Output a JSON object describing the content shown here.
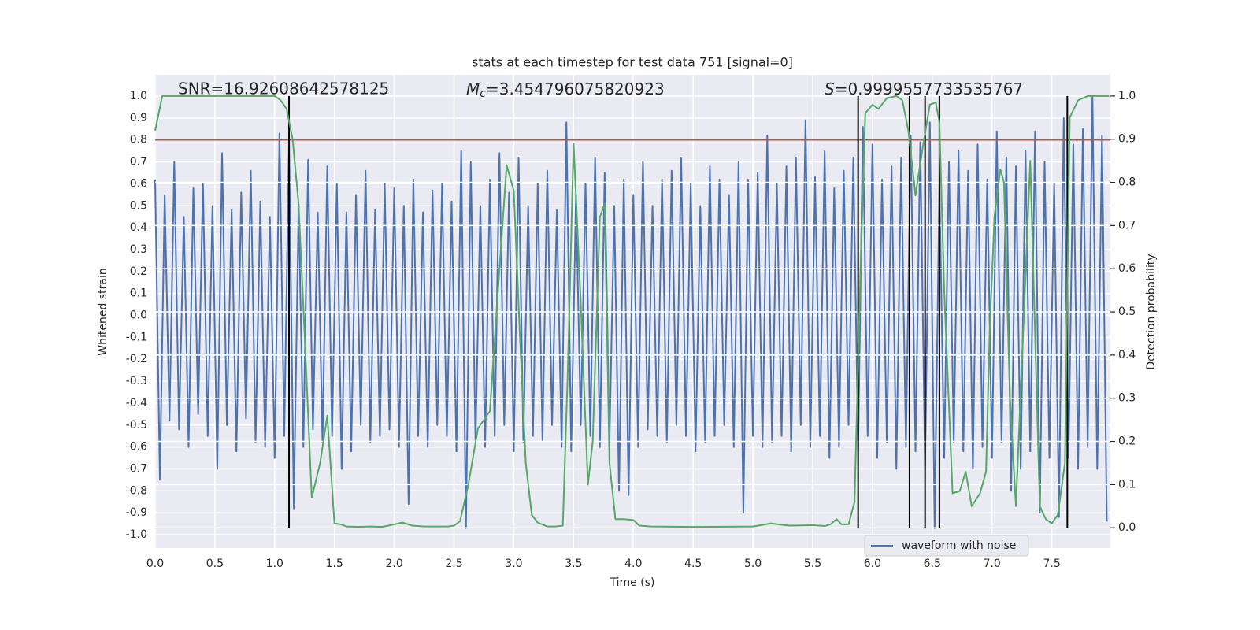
{
  "chart_data": {
    "type": "line",
    "title": "stats at each timestep for test data 751 [signal=0]",
    "xlabel": "Time (s)",
    "ylabel": "Whitened strain",
    "y2label": "Detection probability",
    "grid": true,
    "legend": "lower right",
    "annotations": [
      {
        "text": "SNR=16.92608642578125"
      },
      {
        "symbol": "M",
        "subscript": "c",
        "text": "=3.454796075820923"
      },
      {
        "symbol": "S",
        "text": "=0.9999557733535767"
      }
    ],
    "xlim": [
      0,
      7.99
    ],
    "ylim": [
      -1.061,
      1.097
    ],
    "y2lim": [
      -0.047,
      1.049
    ],
    "xticks": [
      {
        "value": 0,
        "label": "0.0"
      },
      {
        "value": 0.5,
        "label": "0.5"
      },
      {
        "value": 1,
        "label": "1.0"
      },
      {
        "value": 1.5,
        "label": "1.5"
      },
      {
        "value": 2,
        "label": "2.0"
      },
      {
        "value": 2.5,
        "label": "2.5"
      },
      {
        "value": 3,
        "label": "3.0"
      },
      {
        "value": 3.5,
        "label": "3.5"
      },
      {
        "value": 4,
        "label": "4.0"
      },
      {
        "value": 4.5,
        "label": "4.5"
      },
      {
        "value": 5,
        "label": "5.0"
      },
      {
        "value": 5.5,
        "label": "5.5"
      },
      {
        "value": 6,
        "label": "6.0"
      },
      {
        "value": 6.5,
        "label": "6.5"
      },
      {
        "value": 7,
        "label": "7.0"
      },
      {
        "value": 7.5,
        "label": "7.5"
      }
    ],
    "yticks": [
      {
        "value": -1,
        "label": "-1.0"
      },
      {
        "value": -0.9,
        "label": "-0.9"
      },
      {
        "value": -0.8,
        "label": "-0.8"
      },
      {
        "value": -0.7,
        "label": "-0.7"
      },
      {
        "value": -0.6,
        "label": "-0.6"
      },
      {
        "value": -0.5,
        "label": "-0.5"
      },
      {
        "value": -0.4,
        "label": "-0.4"
      },
      {
        "value": -0.3,
        "label": "-0.3"
      },
      {
        "value": -0.2,
        "label": "-0.2"
      },
      {
        "value": -0.1,
        "label": "-0.1"
      },
      {
        "value": 0,
        "label": "0.0"
      },
      {
        "value": 0.1,
        "label": "0.1"
      },
      {
        "value": 0.2,
        "label": "0.2"
      },
      {
        "value": 0.3,
        "label": "0.3"
      },
      {
        "value": 0.4,
        "label": "0.4"
      },
      {
        "value": 0.5,
        "label": "0.5"
      },
      {
        "value": 0.6,
        "label": "0.6"
      },
      {
        "value": 0.7,
        "label": "0.7"
      },
      {
        "value": 0.8,
        "label": "0.8"
      },
      {
        "value": 0.9,
        "label": "0.9"
      },
      {
        "value": 1,
        "label": "1.0"
      }
    ],
    "y2ticks": [
      {
        "value": 0,
        "label": "0.0"
      },
      {
        "value": 0.1,
        "label": "0.1"
      },
      {
        "value": 0.2,
        "label": "0.2"
      },
      {
        "value": 0.3,
        "label": "0.3"
      },
      {
        "value": 0.4,
        "label": "0.4"
      },
      {
        "value": 0.5,
        "label": "0.5"
      },
      {
        "value": 0.6,
        "label": "0.6"
      },
      {
        "value": 0.7,
        "label": "0.7"
      },
      {
        "value": 0.8,
        "label": "0.8"
      },
      {
        "value": 0.9,
        "label": "0.9"
      },
      {
        "value": 1,
        "label": "1.0"
      }
    ],
    "series": [
      {
        "name": "waveform with noise",
        "color": "#4c72b0",
        "x": [
          0,
          0.04,
          0.08,
          0.12,
          0.16,
          0.2,
          0.24,
          0.28,
          0.32,
          0.36,
          0.4,
          0.44,
          0.48,
          0.52,
          0.56,
          0.6,
          0.64,
          0.68,
          0.72,
          0.76,
          0.8,
          0.84,
          0.88,
          0.92,
          0.96,
          1,
          1.04,
          1.08,
          1.12,
          1.16,
          1.2,
          1.24,
          1.28,
          1.32,
          1.36,
          1.4,
          1.44,
          1.48,
          1.52,
          1.56,
          1.6,
          1.64,
          1.68,
          1.72,
          1.76,
          1.8,
          1.84,
          1.88,
          1.92,
          1.96,
          2,
          2.04,
          2.08,
          2.12,
          2.16,
          2.2,
          2.24,
          2.28,
          2.32,
          2.36,
          2.4,
          2.44,
          2.48,
          2.52,
          2.56,
          2.6,
          2.64,
          2.68,
          2.72,
          2.76,
          2.8,
          2.84,
          2.88,
          2.92,
          2.96,
          3,
          3.04,
          3.08,
          3.12,
          3.16,
          3.2,
          3.24,
          3.28,
          3.32,
          3.36,
          3.4,
          3.44,
          3.48,
          3.52,
          3.56,
          3.6,
          3.64,
          3.68,
          3.72,
          3.76,
          3.8,
          3.84,
          3.88,
          3.92,
          3.96,
          4,
          4.04,
          4.08,
          4.12,
          4.16,
          4.2,
          4.24,
          4.28,
          4.32,
          4.36,
          4.4,
          4.44,
          4.48,
          4.52,
          4.56,
          4.6,
          4.64,
          4.68,
          4.72,
          4.76,
          4.8,
          4.84,
          4.88,
          4.92,
          4.96,
          5,
          5.04,
          5.08,
          5.12,
          5.16,
          5.2,
          5.24,
          5.28,
          5.32,
          5.36,
          5.4,
          5.44,
          5.48,
          5.52,
          5.56,
          5.6,
          5.64,
          5.68,
          5.72,
          5.76,
          5.8,
          5.84,
          5.88,
          5.92,
          5.96,
          6,
          6.04,
          6.08,
          6.12,
          6.16,
          6.2,
          6.24,
          6.28,
          6.32,
          6.36,
          6.4,
          6.44,
          6.48,
          6.52,
          6.56,
          6.6,
          6.64,
          6.68,
          6.72,
          6.76,
          6.8,
          6.84,
          6.88,
          6.92,
          6.96,
          7,
          7.04,
          7.08,
          7.12,
          7.16,
          7.2,
          7.24,
          7.28,
          7.32,
          7.36,
          7.4,
          7.44,
          7.48,
          7.52,
          7.56,
          7.6,
          7.64,
          7.68,
          7.72,
          7.76,
          7.8,
          7.84,
          7.88,
          7.92,
          7.96
        ],
        "values": [
          0.62,
          -0.75,
          0.55,
          -0.48,
          0.7,
          -0.52,
          0.45,
          -0.6,
          0.58,
          -0.45,
          0.6,
          -0.55,
          0.5,
          -0.7,
          0.74,
          -0.5,
          0.48,
          -0.62,
          0.56,
          -0.47,
          0.66,
          -0.58,
          0.52,
          -0.6,
          0.45,
          -0.65,
          0.83,
          -0.55,
          0.8,
          -0.88,
          0.5,
          -0.6,
          0.71,
          -0.52,
          0.47,
          -0.58,
          0.68,
          -0.55,
          0.6,
          -0.7,
          0.47,
          -0.62,
          0.55,
          -0.5,
          0.66,
          -0.58,
          0.48,
          -0.55,
          0.6,
          -0.52,
          0.58,
          -0.6,
          0.5,
          -0.86,
          0.62,
          -0.55,
          0.47,
          -0.6,
          0.57,
          -0.5,
          0.6,
          -0.55,
          0.52,
          -0.62,
          0.75,
          -0.97,
          0.7,
          -0.58,
          0.5,
          -0.6,
          0.62,
          -0.55,
          0.74,
          -0.5,
          0.56,
          -0.62,
          0.72,
          -0.58,
          0.5,
          -0.55,
          0.6,
          -0.57,
          0.66,
          -0.5,
          0.48,
          -0.6,
          0.88,
          -0.62,
          0.55,
          -0.5,
          0.6,
          -0.55,
          0.72,
          -0.6,
          0.65,
          -0.58,
          0.5,
          -0.8,
          0.62,
          -0.82,
          0.55,
          -0.6,
          0.7,
          -0.52,
          0.5,
          -0.55,
          0.62,
          -0.58,
          0.66,
          -0.5,
          0.72,
          -0.55,
          0.6,
          -0.62,
          0.5,
          -0.58,
          0.68,
          -0.55,
          0.62,
          -0.5,
          0.55,
          -0.6,
          0.7,
          -0.9,
          0.62,
          -0.55,
          0.65,
          -0.6,
          0.82,
          -0.58,
          0.6,
          -0.55,
          0.68,
          -0.62,
          0.72,
          -0.5,
          0.89,
          -0.6,
          0.63,
          -0.55,
          0.75,
          -0.65,
          0.58,
          -0.6,
          0.66,
          -0.5,
          0.72,
          -0.62,
          0.86,
          -0.55,
          0.78,
          -0.65,
          0.62,
          -0.58,
          0.68,
          -0.7,
          0.72,
          -0.6,
          0.82,
          -0.62,
          0.79,
          -0.7,
          0.88,
          -0.97,
          0.6,
          -0.65,
          0.7,
          -0.58,
          0.75,
          -0.62,
          0.66,
          -0.7,
          0.78,
          -0.6,
          0.62,
          -0.65,
          0.84,
          -0.58,
          0.72,
          -0.8,
          0.68,
          -0.7,
          0.75,
          -0.62,
          0.84,
          -0.9,
          0.7,
          -0.65,
          0.6,
          -0.92,
          0.9,
          -0.65,
          0.78,
          -0.7,
          0.85,
          -0.6,
          1.0,
          -0.7,
          0.82,
          -0.94
        ]
      }
    ],
    "probability": {
      "color": "#55a868",
      "axis": "y2",
      "x": [
        0,
        0.06,
        0.5,
        1,
        1.05,
        1.1,
        1.15,
        1.2,
        1.25,
        1.31,
        1.38,
        1.44,
        1.5,
        1.55,
        1.6,
        1.7,
        1.8,
        1.9,
        2,
        2.07,
        2.15,
        2.25,
        2.35,
        2.45,
        2.5,
        2.55,
        2.62,
        2.7,
        2.8,
        2.88,
        2.94,
        3,
        3.05,
        3.1,
        3.15,
        3.2,
        3.28,
        3.35,
        3.41,
        3.45,
        3.5,
        3.56,
        3.62,
        3.66,
        3.72,
        3.76,
        3.8,
        3.85,
        3.92,
        4,
        4.05,
        4.15,
        4.5,
        5,
        5.15,
        5.3,
        5.5,
        5.6,
        5.65,
        5.7,
        5.74,
        5.8,
        5.85,
        5.9,
        5.94,
        6,
        6.05,
        6.12,
        6.2,
        6.25,
        6.3,
        6.36,
        6.42,
        6.48,
        6.53,
        6.56,
        6.6,
        6.67,
        6.73,
        6.78,
        6.83,
        6.9,
        6.95,
        6.98,
        7.02,
        7.07,
        7.1,
        7.15,
        7.2,
        7.26,
        7.32,
        7.4,
        7.45,
        7.5,
        7.55,
        7.61,
        7.65,
        7.72,
        7.8,
        7.9,
        7.98
      ],
      "values": [
        0.92,
        1,
        1,
        1,
        0.99,
        0.97,
        0.9,
        0.75,
        0.45,
        0.07,
        0.15,
        0.26,
        0.01,
        0.008,
        0.003,
        0.002,
        0.003,
        0.002,
        0.008,
        0.012,
        0.005,
        0.003,
        0.003,
        0.003,
        0.005,
        0.015,
        0.1,
        0.23,
        0.27,
        0.6,
        0.84,
        0.78,
        0.45,
        0.15,
        0.03,
        0.012,
        0.003,
        0.003,
        0.005,
        0.35,
        0.89,
        0.52,
        0.1,
        0.2,
        0.72,
        0.75,
        0.15,
        0.02,
        0.02,
        0.018,
        0.005,
        0.003,
        0.002,
        0.003,
        0.01,
        0.005,
        0.006,
        0.004,
        0.008,
        0.02,
        0.008,
        0.008,
        0.06,
        0.6,
        0.96,
        0.98,
        0.97,
        0.995,
        1,
        0.99,
        0.92,
        0.77,
        0.88,
        0.98,
        0.985,
        0.94,
        0.55,
        0.08,
        0.085,
        0.13,
        0.05,
        0.08,
        0.13,
        0.45,
        0.72,
        0.83,
        0.8,
        0.3,
        0.05,
        0.45,
        0.85,
        0.05,
        0.02,
        0.01,
        0.03,
        0.15,
        0.95,
        0.99,
        1,
        1,
        1
      ]
    },
    "hline": {
      "value": 0.8,
      "color": "#c44e52"
    },
    "vlines": {
      "x": [
        1.12,
        5.88,
        6.31,
        6.44,
        6.56,
        7.63
      ],
      "ymin": 0,
      "ymax": 1,
      "axis": "y2",
      "color": "#000000"
    }
  }
}
